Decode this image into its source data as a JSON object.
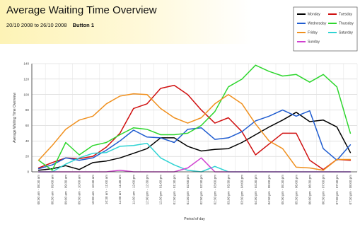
{
  "header": {
    "title": "Average Waiting Time Overview",
    "date_range": "20/10 2008 to 26/10 2008",
    "button_label": "Button 1"
  },
  "chart_data": {
    "type": "line",
    "title": "Average Waiting Time Overview",
    "xlabel": "Period of day",
    "ylabel": "Average Waiting Time Overview",
    "ylim": [
      0,
      140
    ],
    "yticks": [
      0,
      20,
      40,
      60,
      80,
      100,
      120,
      140
    ],
    "grid": true,
    "legend_position": "top-right",
    "categories": [
      "08:00 am - 08:30 am",
      "08:30 am - 09:00 am",
      "09:00 am - 09:30 am",
      "09:30 am - 10:00 am",
      "10:00 am - 10:30 am",
      "10:30 am - 11:00 am",
      "11:00 am - 11:30 am",
      "11:30 am - 12:00 pm",
      "12:00 pm - 12:30 pm",
      "12:30 pm - 01:00 pm",
      "01:00 pm - 01:30 pm",
      "01:30 pm - 02:00 pm",
      "02:00 pm - 02:30 pm",
      "02:30 pm - 03:00 pm",
      "03:00 pm - 03:30 pm",
      "03:30 pm - 04:00 pm",
      "04:00 pm - 04:30 pm",
      "04:30 pm - 05:00 pm",
      "05:00 pm - 05:30 pm",
      "05:30 pm - 06:00 pm",
      "06:00 pm - 06:30 pm",
      "06:30 pm - 07:00 pm",
      "07:00 pm - 07:30 pm",
      "07:30 pm - 08:00 pm"
    ],
    "series": [
      {
        "name": "Monday",
        "color": "#000000",
        "values": [
          2,
          4,
          8,
          3,
          12,
          14,
          18,
          24,
          30,
          44,
          44,
          33,
          27,
          29,
          30,
          38,
          48,
          58,
          67,
          77,
          65,
          67,
          58,
          25
        ]
      },
      {
        "name": "Tuesday",
        "color": "#d01010",
        "values": [
          5,
          12,
          18,
          17,
          20,
          32,
          50,
          82,
          88,
          108,
          112,
          100,
          80,
          63,
          70,
          52,
          22,
          36,
          50,
          50,
          15,
          3,
          16,
          15
        ]
      },
      {
        "name": "Wednesday",
        "color": "#1f5cd0",
        "values": [
          4,
          9,
          18,
          15,
          18,
          28,
          40,
          54,
          45,
          44,
          38,
          55,
          57,
          42,
          44,
          52,
          66,
          72,
          80,
          72,
          79,
          30,
          15,
          35
        ]
      },
      {
        "name": "Thursday",
        "color": "#2ed62e",
        "values": [
          15,
          2,
          38,
          22,
          34,
          38,
          48,
          57,
          55,
          48,
          48,
          50,
          60,
          78,
          110,
          120,
          138,
          130,
          124,
          126,
          116,
          126,
          110,
          50
        ]
      },
      {
        "name": "Friday",
        "color": "#f0901e",
        "values": [
          15,
          34,
          55,
          67,
          72,
          88,
          98,
          101,
          100,
          82,
          70,
          63,
          70,
          88,
          100,
          88,
          62,
          40,
          30,
          6,
          5,
          2,
          16,
          16
        ]
      },
      {
        "name": "Saturday",
        "color": "#2ed3d3",
        "values": [
          0,
          0,
          10,
          18,
          24,
          25,
          33,
          34,
          37,
          18,
          9,
          2,
          0,
          7,
          0,
          0,
          0,
          0,
          0,
          0,
          0,
          0,
          0,
          0
        ]
      },
      {
        "name": "Sunday",
        "color": "#d040d0",
        "values": [
          0,
          0,
          0,
          0,
          0,
          0,
          2,
          0,
          0,
          0,
          0,
          5,
          18,
          0,
          0,
          0,
          0,
          0,
          0,
          0,
          0,
          0,
          0,
          0
        ]
      }
    ]
  }
}
